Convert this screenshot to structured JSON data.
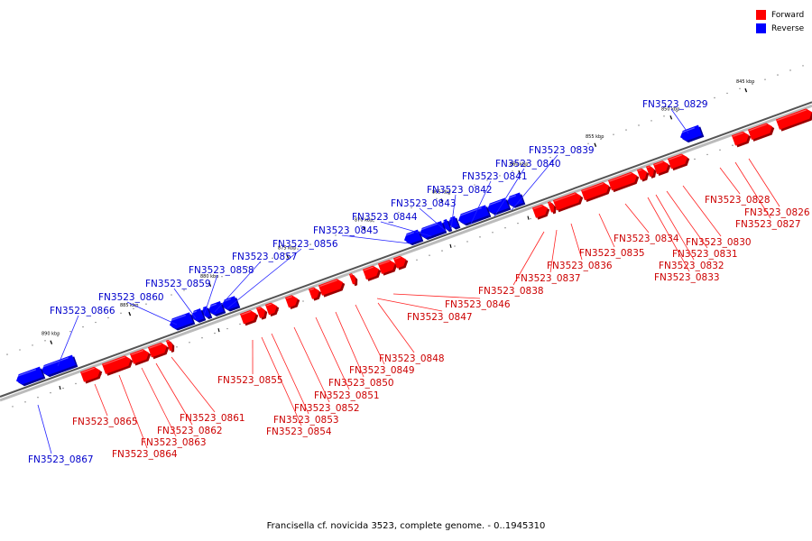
{
  "legend": {
    "forward_label": "Forward",
    "reverse_label": "Reverse",
    "forward_color": "#ff0000",
    "reverse_color": "#0000ff"
  },
  "caption": "Francisella cf. novicida 3523, complete genome. - 0..1945310",
  "colors": {
    "forward": "#ff0000",
    "forward_label": "#cc0000",
    "reverse": "#0000ff",
    "reverse_label": "#0000cc",
    "backbone": "#888888"
  },
  "ticks": [
    "845 kbp",
    "850 kbp",
    "855 kbp",
    "860 kbp",
    "865 kbp",
    "870 kbp",
    "875 kbp",
    "880 kbp",
    "885 kbp",
    "890 kbp"
  ],
  "genes_reverse": [
    "FN3523_0829",
    "FN3523_0839",
    "FN3523_0840",
    "FN3523_0841",
    "FN3523_0842",
    "FN3523_0843",
    "FN3523_0844",
    "FN3523_0845",
    "FN3523_0856",
    "FN3523_0857",
    "FN3523_0858",
    "FN3523_0859",
    "FN3523_0860",
    "FN3523_0866",
    "FN3523_0867"
  ],
  "genes_forward": [
    "FN3523_0826",
    "FN3523_0827",
    "FN3523_0828",
    "FN3523_0830",
    "FN3523_0831",
    "FN3523_0832",
    "FN3523_0833",
    "FN3523_0834",
    "FN3523_0835",
    "FN3523_0836",
    "FN3523_0837",
    "FN3523_0838",
    "FN3523_0846",
    "FN3523_0847",
    "FN3523_0848",
    "FN3523_0849",
    "FN3523_0850",
    "FN3523_0851",
    "FN3523_0852",
    "FN3523_0853",
    "FN3523_0854",
    "FN3523_0855",
    "FN3523_0861",
    "FN3523_0862",
    "FN3523_0863",
    "FN3523_0864",
    "FN3523_0865"
  ]
}
